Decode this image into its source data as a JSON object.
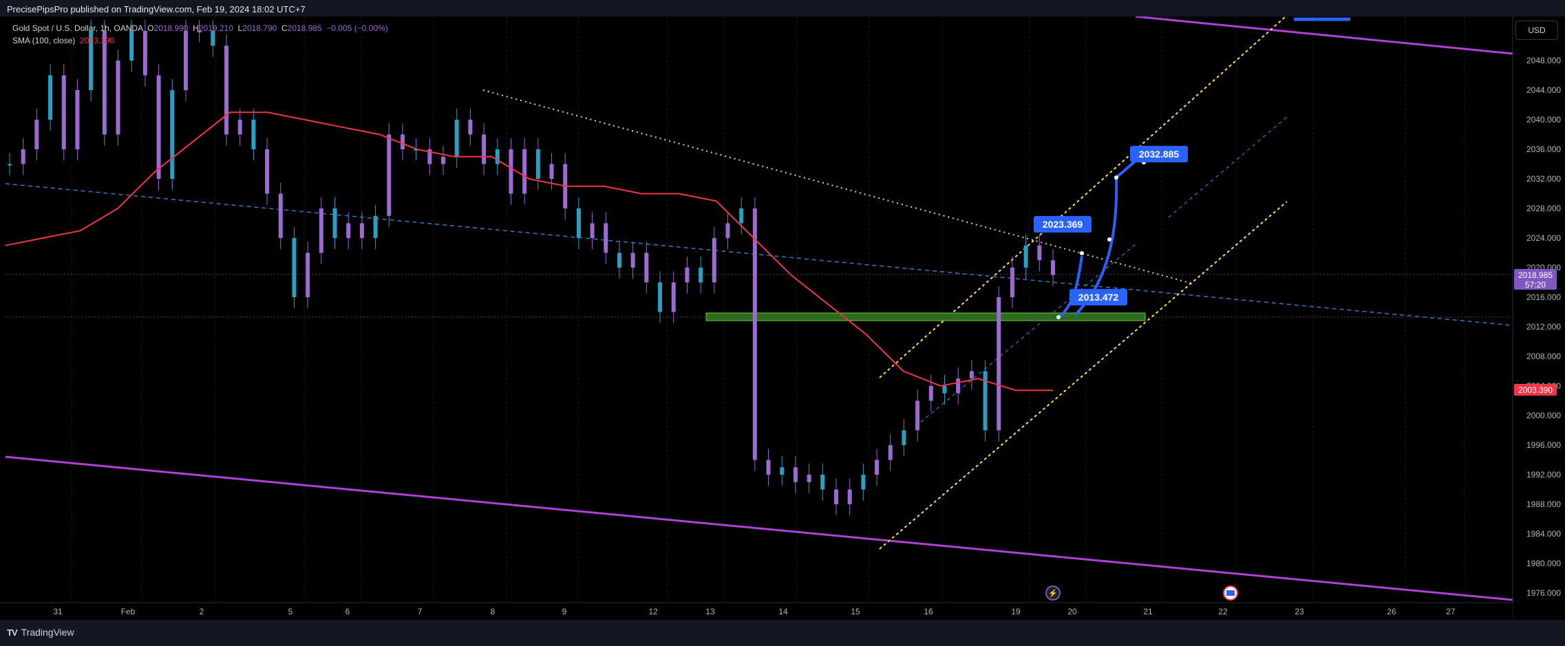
{
  "publisher": "PrecisePipsPro published on TradingView.com, Feb 19, 2024 18:02 UTC+7",
  "legend": {
    "symbol": "Gold Spot / U.S. Dollar, 1h, OANDA",
    "o_label": "O",
    "o": "2018.990",
    "h_label": "H",
    "h": "2019.210",
    "l_label": "L",
    "l": "2018.790",
    "c_label": "C",
    "c": "2018.985",
    "change": "−0.005 (−0.00%)",
    "sma_label": "SMA (100, close)",
    "sma": "2003.390"
  },
  "currency": "USD",
  "brand": "TradingView",
  "colors": {
    "background": "#000000",
    "candle": "#9c6ad0",
    "candle_alt": "#2a9fc4",
    "sma": "#f23645",
    "channel": "#b040d8",
    "annotation": "#2962ff",
    "zone": "#2e6b1f",
    "yellow": "#ffe14d"
  },
  "chart_data": {
    "type": "line",
    "instrument": "Gold Spot / U.S. Dollar, 1h, OANDA",
    "y_axis": {
      "range": [
        1974,
        2052
      ],
      "ticks": [
        "2048.000",
        "2044.000",
        "2040.000",
        "2036.000",
        "2032.000",
        "2028.000",
        "2024.000",
        "2020.000",
        "2016.000",
        "2012.000",
        "2008.000",
        "2004.000",
        "2000.000",
        "1996.000",
        "1992.000",
        "1988.000",
        "1984.000",
        "1980.000",
        "1976.000"
      ]
    },
    "x_axis": {
      "ticks": [
        "31",
        "Feb",
        "2",
        "5",
        "6",
        "7",
        "8",
        "9",
        "12",
        "13",
        "14",
        "15",
        "16",
        "19",
        "20",
        "21",
        "22",
        "23",
        "26",
        "27"
      ]
    },
    "price_label": {
      "value": "2018.985",
      "countdown": "57:20"
    },
    "sma_label": "2003.390",
    "annotations": [
      {
        "label": "2023.369",
        "price": 2023.369
      },
      {
        "label": "2013.472",
        "price": 2013.472
      },
      {
        "label": "2032.885",
        "price": 2032.885
      }
    ],
    "support_zone": [
      2012.8,
      2013.6
    ],
    "series": [
      {
        "kind": "price",
        "points": [
          [
            "31",
            2034
          ],
          [
            "",
            2036
          ],
          [
            "",
            2040
          ],
          [
            "",
            2046
          ],
          [
            "",
            2036
          ],
          [
            "Feb",
            2044
          ],
          [
            "",
            2052
          ],
          [
            "",
            2038
          ],
          [
            "",
            2048
          ],
          [
            "",
            2052
          ],
          [
            "",
            2046
          ],
          [
            "2",
            2032
          ],
          [
            "",
            2044
          ],
          [
            "",
            2052
          ],
          [
            "",
            2052
          ],
          [
            "",
            2050
          ],
          [
            "5",
            2038
          ],
          [
            "",
            2040
          ],
          [
            "",
            2036
          ],
          [
            "",
            2030
          ],
          [
            "",
            2024
          ],
          [
            "",
            2016
          ],
          [
            "6",
            2022
          ],
          [
            "",
            2028
          ],
          [
            "",
            2024
          ],
          [
            "",
            2026
          ],
          [
            "",
            2024
          ],
          [
            "",
            2027
          ],
          [
            "7",
            2038
          ],
          [
            "",
            2036
          ],
          [
            "",
            2036
          ],
          [
            "",
            2034
          ],
          [
            "",
            2035
          ],
          [
            "8",
            2040
          ],
          [
            "",
            2038
          ],
          [
            "",
            2034
          ],
          [
            "",
            2036
          ],
          [
            "",
            2030
          ],
          [
            "9",
            2036
          ],
          [
            "",
            2032
          ],
          [
            "",
            2034
          ],
          [
            "",
            2028
          ],
          [
            "",
            2024
          ],
          [
            "",
            2026
          ],
          [
            "12",
            2022
          ],
          [
            "",
            2020
          ],
          [
            "",
            2022
          ],
          [
            "",
            2018
          ],
          [
            "",
            2014
          ],
          [
            "13",
            2018
          ],
          [
            "",
            2020
          ],
          [
            "",
            2018
          ],
          [
            "",
            2024
          ],
          [
            "",
            2026
          ],
          [
            "",
            2028
          ],
          [
            "14",
            1994
          ],
          [
            "",
            1992
          ],
          [
            "",
            1993
          ],
          [
            "",
            1991
          ],
          [
            "",
            1992
          ],
          [
            "",
            1990
          ],
          [
            "15",
            1988
          ],
          [
            "",
            1990
          ],
          [
            "",
            1992
          ],
          [
            "",
            1994
          ],
          [
            "",
            1996
          ],
          [
            "",
            1998
          ],
          [
            "16",
            2002
          ],
          [
            "",
            2004
          ],
          [
            "",
            2003
          ],
          [
            "",
            2005
          ],
          [
            "",
            2006
          ],
          [
            "",
            1998
          ],
          [
            "19",
            2016
          ],
          [
            "",
            2020
          ],
          [
            "",
            2023
          ],
          [
            "",
            2021
          ],
          [
            "",
            2019
          ]
        ]
      },
      {
        "kind": "sma",
        "name": "SMA (100, close)",
        "points": [
          [
            "31",
            2023
          ],
          [
            "",
            2024
          ],
          [
            "Feb",
            2025
          ],
          [
            "",
            2028
          ],
          [
            "2",
            2033
          ],
          [
            "",
            2037
          ],
          [
            "5",
            2041
          ],
          [
            "",
            2041
          ],
          [
            "6",
            2040
          ],
          [
            "",
            2039
          ],
          [
            "7",
            2038
          ],
          [
            "",
            2036
          ],
          [
            "8",
            2035
          ],
          [
            "",
            2035
          ],
          [
            "9",
            2032
          ],
          [
            "",
            2031
          ],
          [
            "12",
            2031
          ],
          [
            "",
            2030
          ],
          [
            "13",
            2030
          ],
          [
            "",
            2029
          ],
          [
            "14",
            2024
          ],
          [
            "",
            2019
          ],
          [
            "15",
            2015
          ],
          [
            "",
            2011
          ],
          [
            "16",
            2006
          ],
          [
            "",
            2004
          ],
          [
            "",
            2005
          ],
          [
            "19",
            2003.4
          ],
          [
            "",
            2003.4
          ]
        ]
      }
    ]
  }
}
